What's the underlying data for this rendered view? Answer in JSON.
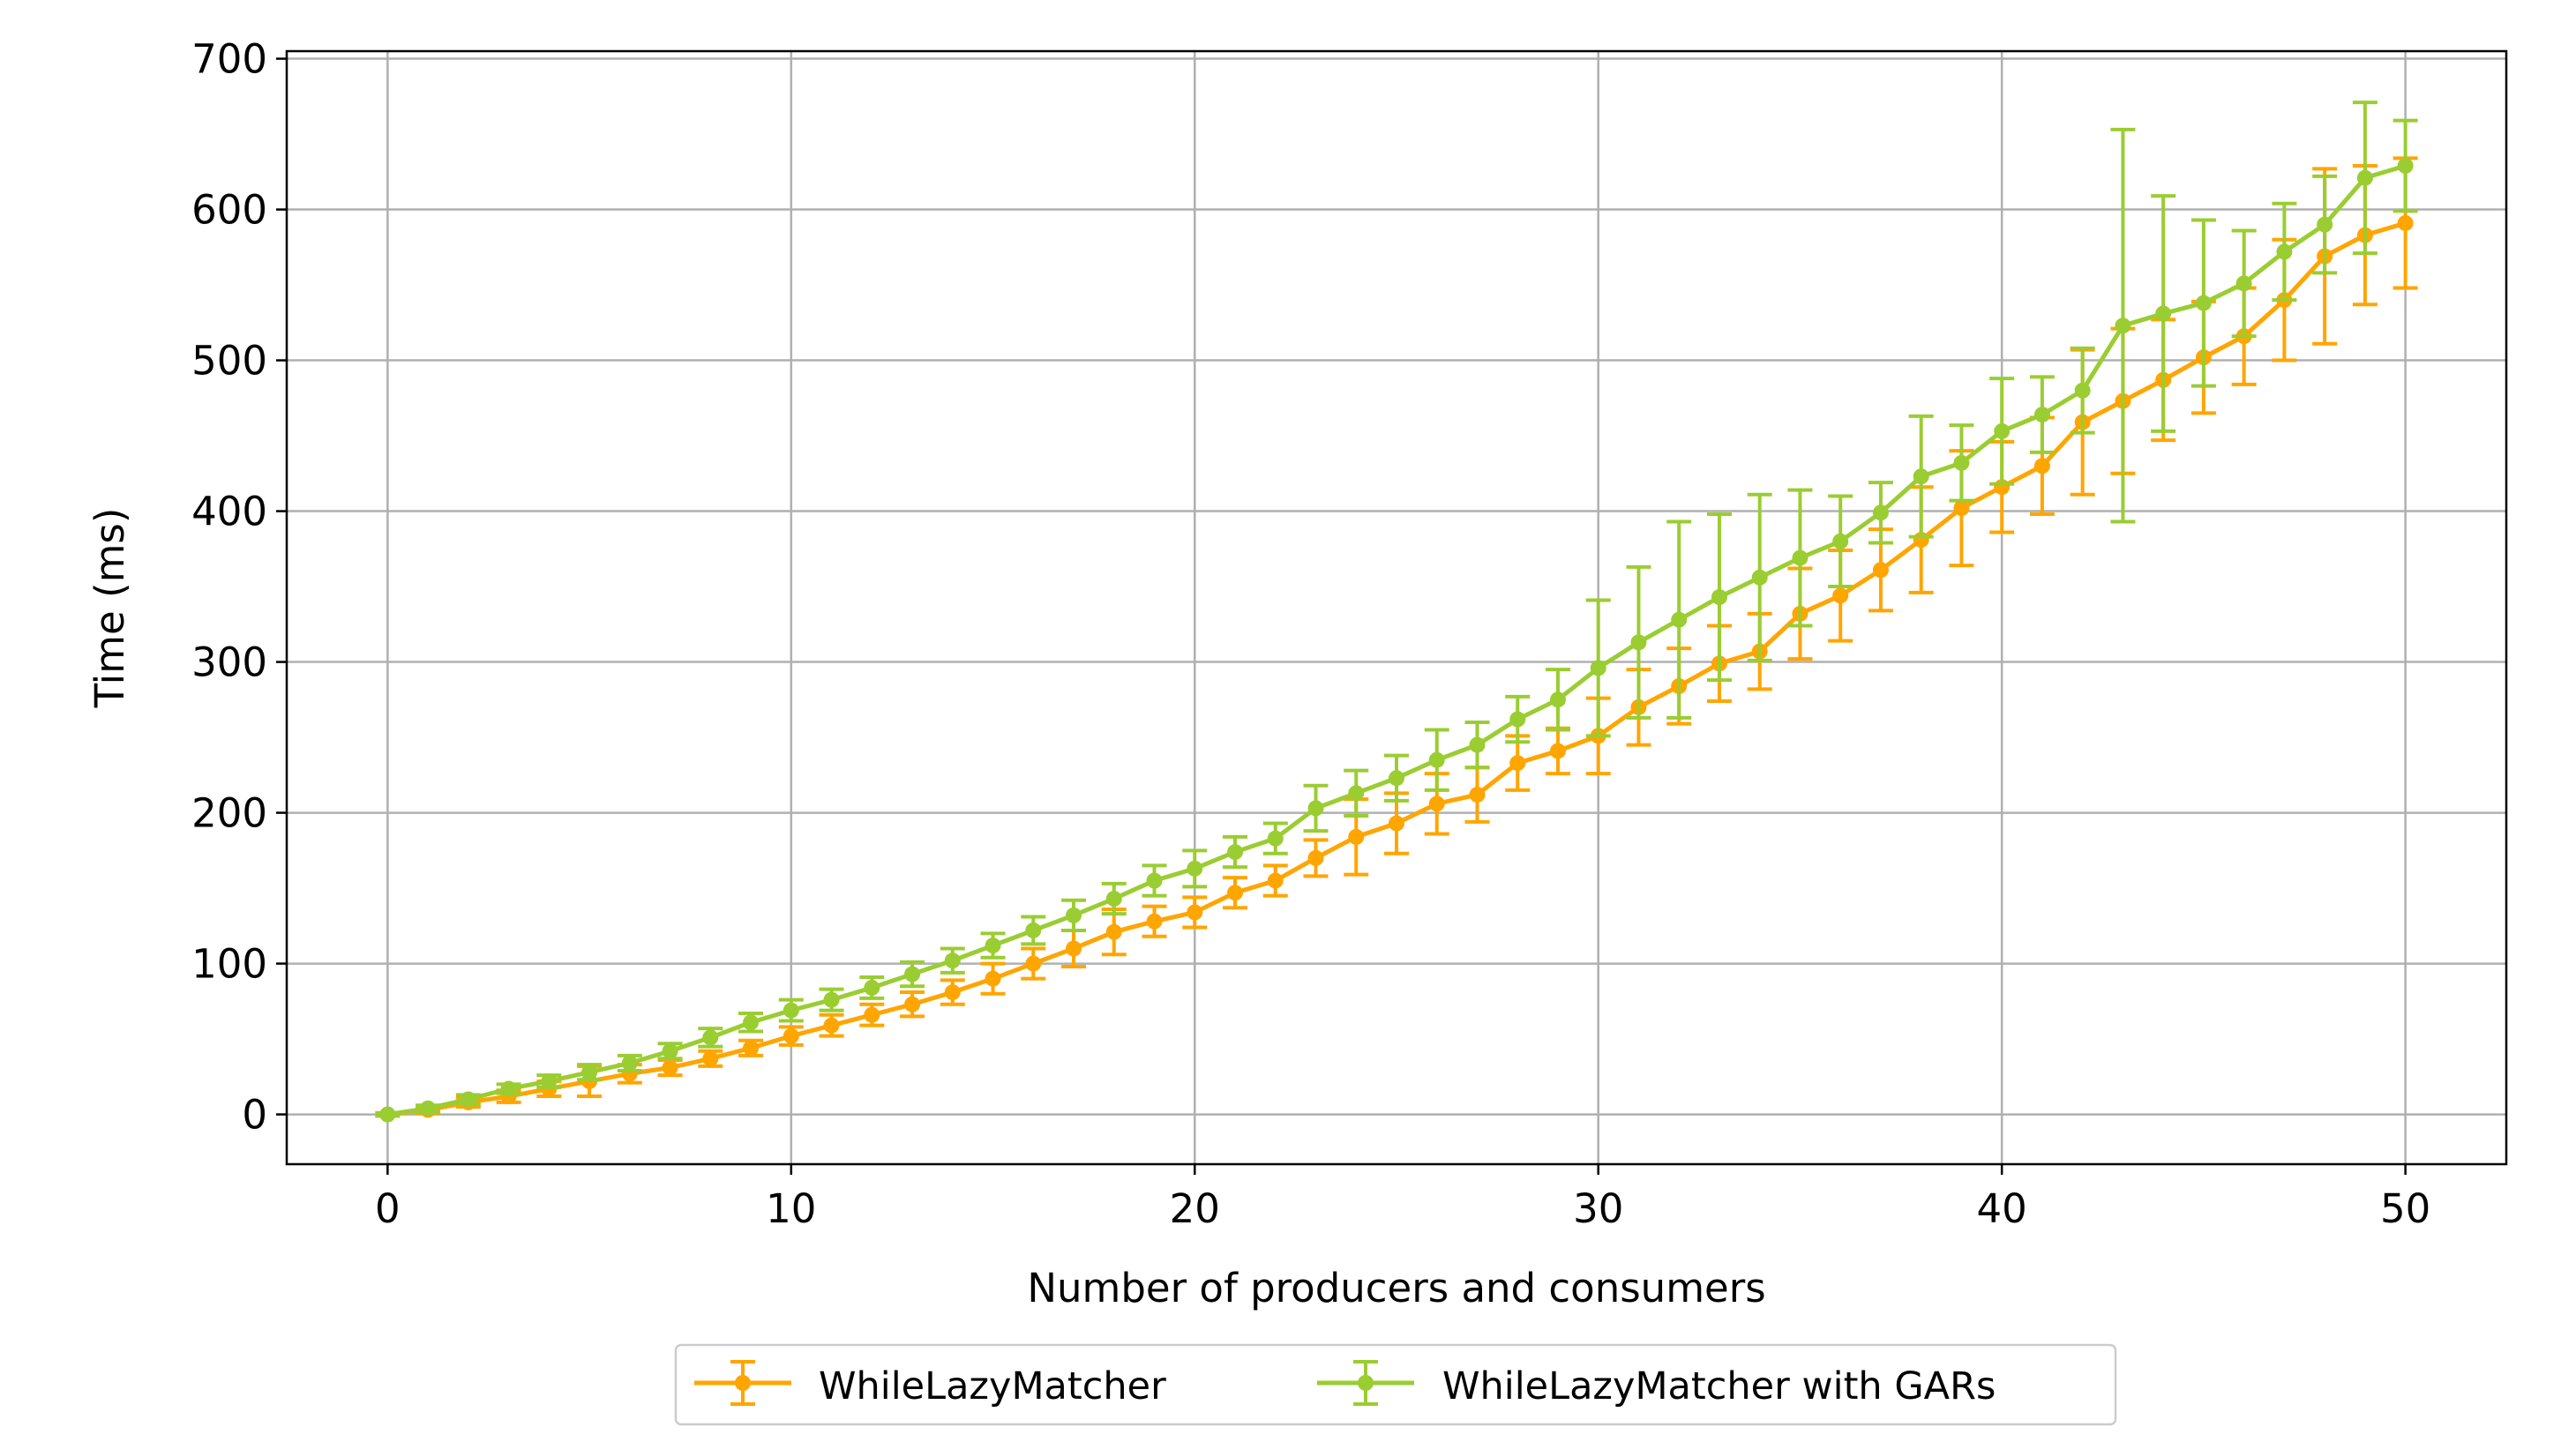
{
  "chart_data": {
    "type": "line",
    "xlabel": "Number of producers and consumers",
    "ylabel": "Time (ms)",
    "xlim": [
      -2.5,
      52.5
    ],
    "ylim": [
      -33,
      705
    ],
    "xticks": [
      0,
      10,
      20,
      30,
      40,
      50
    ],
    "yticks": [
      0,
      100,
      200,
      300,
      400,
      500,
      600,
      700
    ],
    "grid": true,
    "legend_position": "bottom-center",
    "error_bars": true,
    "x": [
      0,
      1,
      2,
      3,
      4,
      5,
      6,
      7,
      8,
      9,
      10,
      11,
      12,
      13,
      14,
      15,
      16,
      17,
      18,
      19,
      20,
      21,
      22,
      23,
      24,
      25,
      26,
      27,
      28,
      29,
      30,
      31,
      32,
      33,
      34,
      35,
      36,
      37,
      38,
      39,
      40,
      41,
      42,
      43,
      44,
      45,
      46,
      47,
      48,
      49,
      50
    ],
    "series": [
      {
        "name": "WhileLazyMatcher",
        "color": "#ffa500",
        "values": [
          0,
          3,
          8,
          12,
          17,
          22,
          27,
          31,
          37,
          44,
          52,
          59,
          66,
          73,
          81,
          90,
          100,
          110,
          121,
          128,
          134,
          147,
          155,
          170,
          184,
          193,
          206,
          212,
          233,
          241,
          251,
          270,
          284,
          299,
          307,
          332,
          344,
          361,
          381,
          402,
          416,
          430,
          459,
          473,
          487,
          502,
          516,
          540,
          569,
          583,
          591
        ],
        "errors": [
          1,
          2,
          3,
          4,
          5,
          10,
          6,
          5,
          5,
          5,
          6,
          7,
          7,
          8,
          8,
          10,
          10,
          12,
          15,
          10,
          10,
          10,
          10,
          12,
          25,
          20,
          20,
          18,
          18,
          15,
          25,
          25,
          25,
          25,
          25,
          30,
          30,
          27,
          35,
          38,
          30,
          32,
          48,
          48,
          40,
          37,
          32,
          40,
          58,
          46,
          43
        ]
      },
      {
        "name": "WhileLazyMatcher with GARs",
        "color": "#9acd32",
        "values": [
          0,
          4,
          10,
          17,
          22,
          28,
          34,
          42,
          51,
          61,
          69,
          76,
          84,
          93,
          102,
          112,
          122,
          132,
          143,
          155,
          163,
          174,
          183,
          203,
          213,
          223,
          235,
          245,
          262,
          275,
          296,
          313,
          328,
          343,
          356,
          369,
          380,
          399,
          423,
          432,
          453,
          464,
          480,
          523,
          531,
          538,
          551,
          572,
          590,
          621,
          629
        ],
        "errors": [
          1,
          2,
          3,
          3,
          4,
          5,
          5,
          5,
          6,
          6,
          7,
          7,
          7,
          8,
          8,
          8,
          9,
          10,
          10,
          10,
          12,
          10,
          10,
          15,
          15,
          15,
          20,
          15,
          15,
          20,
          45,
          50,
          65,
          55,
          55,
          45,
          30,
          20,
          40,
          25,
          35,
          25,
          28,
          130,
          78,
          55,
          35,
          32,
          32,
          50,
          30
        ]
      }
    ]
  }
}
